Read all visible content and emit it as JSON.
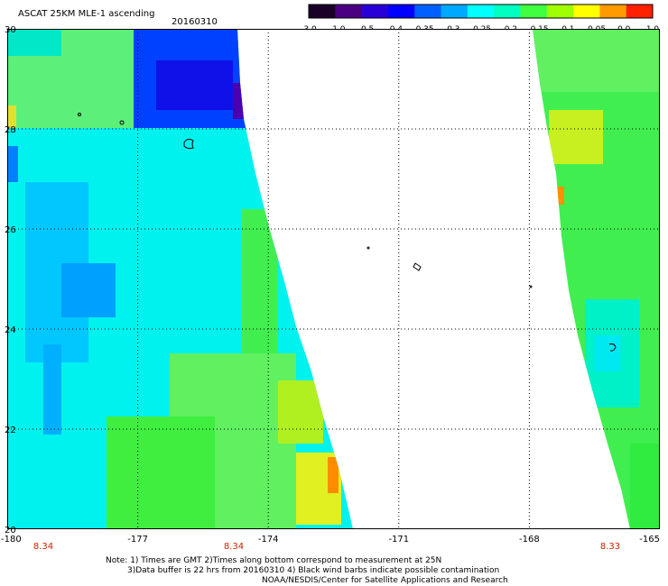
{
  "header": {
    "title": "ASCAT 25KM MLE-1 ascending",
    "date": "20160310"
  },
  "colorbar": {
    "labels": [
      "-3.0",
      "-1.0",
      "-0.5",
      "-0.4",
      "-0.35",
      "-0.3",
      "-0.25",
      "-0.2",
      "-0.15",
      "-0.1",
      "-0.05",
      "0.0",
      "1.0"
    ],
    "colors": [
      "#1a0028",
      "#4b0082",
      "#2a00d8",
      "#0000ff",
      "#0060ff",
      "#00a8ff",
      "#00ffff",
      "#00ffc0",
      "#40ff40",
      "#a0ff00",
      "#ffff00",
      "#ff9a00",
      "#ff2000"
    ]
  },
  "map": {
    "lon_ticks": [
      "-180",
      "-177",
      "-174",
      "-171",
      "-168",
      "-165"
    ],
    "lat_ticks": [
      "30",
      "28",
      "26",
      "24",
      "22",
      "20"
    ],
    "swath_time_labels": [
      "8.34",
      "8.34",
      "8.33"
    ],
    "lon_range": [
      -180,
      -165
    ],
    "lat_range": [
      20,
      30
    ],
    "gridlines": true
  },
  "notes": {
    "line1": "Note: 1) Times are GMT 2)Times along bottom correspond to measurement at 25N",
    "line2": "3)Data buffer is 22 hrs from 20160310 4) Black wind barbs indicate possible contamination",
    "line3": "NOAA/NESDIS/Center for Satellite Applications and Research"
  }
}
